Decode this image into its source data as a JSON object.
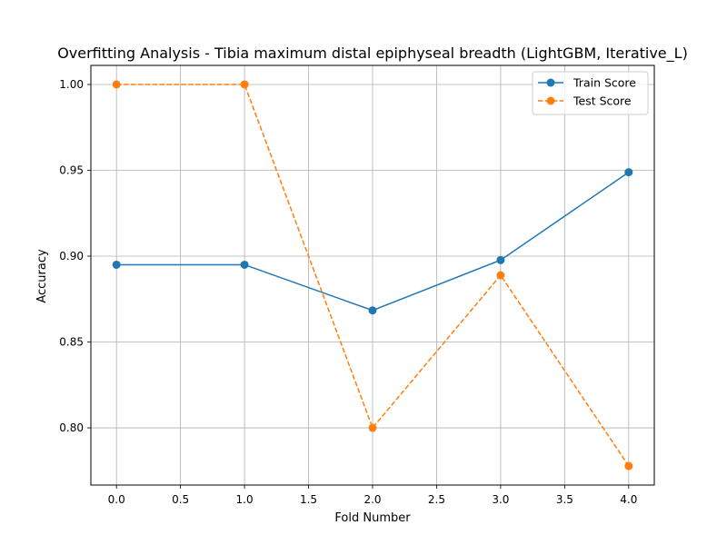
{
  "chart_data": {
    "type": "line",
    "title": "Overfitting Analysis - Tibia maximum distal epiphyseal breadth (LightGBM, Iterative_L)",
    "xlabel": "Fold Number",
    "ylabel": "Accuracy",
    "x": [
      0,
      1,
      2,
      3,
      4
    ],
    "series": [
      {
        "name": "Train Score",
        "color": "#1f77b4",
        "linestyle": "solid",
        "marker": "circle",
        "values": [
          0.895,
          0.895,
          0.8684,
          0.8977,
          0.9489
        ]
      },
      {
        "name": "Test Score",
        "color": "#ff7f0e",
        "linestyle": "dashed",
        "marker": "circle",
        "values": [
          1.0,
          1.0,
          0.8,
          0.8889,
          0.7778
        ]
      }
    ],
    "xlim": [
      -0.2,
      4.2
    ],
    "ylim": [
      0.7667,
      1.0111
    ],
    "xticks": [
      0.0,
      0.5,
      1.0,
      1.5,
      2.0,
      2.5,
      3.0,
      3.5,
      4.0
    ],
    "xtick_labels": [
      "0.0",
      "0.5",
      "1.0",
      "1.5",
      "2.0",
      "2.5",
      "3.0",
      "3.5",
      "4.0"
    ],
    "yticks": [
      0.8,
      0.85,
      0.9,
      0.95,
      1.0
    ],
    "ytick_labels": [
      "0.80",
      "0.85",
      "0.90",
      "0.95",
      "1.00"
    ],
    "grid": true,
    "legend_position": "top-right"
  }
}
